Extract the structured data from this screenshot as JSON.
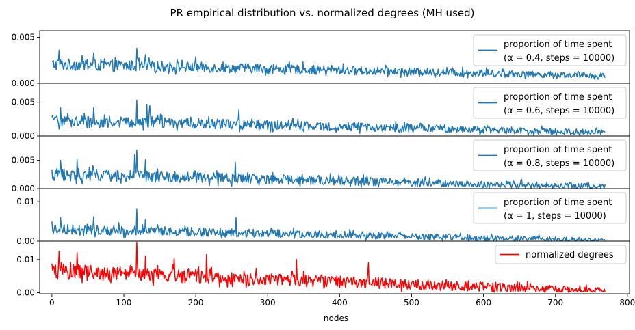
{
  "chart_data": {
    "type": "line",
    "title": "PR empirical distribution vs. normalized degrees (MH used)",
    "xlabel": "nodes",
    "xlim": [
      -17,
      803
    ],
    "x_ticks": [
      0,
      100,
      200,
      300,
      400,
      500,
      600,
      700,
      800
    ],
    "x_tick_labels": [
      "0",
      "100",
      "200",
      "300",
      "400",
      "500",
      "600",
      "700",
      "800"
    ],
    "n_nodes": 770,
    "grid": false,
    "panels": [
      {
        "series_name": "proportion of time spent",
        "legend_line2": "(α = 0.4, steps = 10000)",
        "legend_alpha": "0.4",
        "legend_steps": "10000",
        "color": "#1f77b4",
        "ylim": [
          0.0,
          0.0057
        ],
        "y_ticks": [
          0.0,
          0.005
        ],
        "y_tick_labels": [
          "0.000",
          "0.005"
        ],
        "trend_start": 0.002,
        "trend_end": 0.0008,
        "amplitude": 0.00065,
        "legend_location": "upper right",
        "peaks": [
          [
            10,
            0.0036
          ],
          [
            58,
            0.0033
          ],
          [
            118,
            0.0038
          ],
          [
            130,
            0.0031
          ],
          [
            200,
            0.0029
          ]
        ]
      },
      {
        "series_name": "proportion of time spent",
        "legend_line2": "(α = 0.6, steps = 10000)",
        "legend_alpha": "0.6",
        "legend_steps": "10000",
        "color": "#1f77b4",
        "ylim": [
          0.0,
          0.0078
        ],
        "y_ticks": [
          0.0,
          0.005
        ],
        "y_tick_labels": [
          "0.000",
          "0.005"
        ],
        "trend_start": 0.0022,
        "trend_end": 0.0005,
        "amplitude": 0.0009,
        "legend_location": "upper right",
        "peaks": [
          [
            12,
            0.0042
          ],
          [
            58,
            0.0042
          ],
          [
            118,
            0.0053
          ],
          [
            132,
            0.0047
          ],
          [
            136,
            0.0045
          ],
          [
            260,
            0.0039
          ]
        ]
      },
      {
        "series_name": "proportion of time spent",
        "legend_line2": "(α = 0.8, steps = 10000)",
        "legend_alpha": "0.8",
        "legend_steps": "10000",
        "color": "#1f77b4",
        "ylim": [
          0.0,
          0.0093
        ],
        "y_ticks": [
          0.0,
          0.005
        ],
        "y_tick_labels": [
          "0.000",
          "0.005"
        ],
        "trend_start": 0.0024,
        "trend_end": 0.0003,
        "amplitude": 0.0011,
        "legend_location": "upper right",
        "peaks": [
          [
            12,
            0.005
          ],
          [
            35,
            0.0052
          ],
          [
            115,
            0.006
          ],
          [
            118,
            0.0068
          ],
          [
            130,
            0.0051
          ],
          [
            255,
            0.0047
          ]
        ]
      },
      {
        "series_name": "proportion of time spent",
        "legend_line2": "(α = 1, steps = 10000)",
        "legend_alpha": "1",
        "legend_steps": "10000",
        "color": "#1f77b4",
        "ylim": [
          0.0,
          0.0133
        ],
        "y_ticks": [
          0.0,
          0.01
        ],
        "y_tick_labels": [
          "0.00",
          "0.01"
        ],
        "trend_start": 0.003,
        "trend_end": 0.0001,
        "amplitude": 0.0013,
        "legend_location": "upper right",
        "peaks": [
          [
            12,
            0.006
          ],
          [
            58,
            0.0062
          ],
          [
            118,
            0.0081
          ],
          [
            130,
            0.0055
          ],
          [
            256,
            0.006
          ]
        ]
      },
      {
        "series_name": "normalized degrees",
        "legend_line2": "",
        "color": "#ff0000",
        "ylim": [
          -0.0003,
          0.0155
        ],
        "y_ticks": [
          0.0,
          0.01
        ],
        "y_tick_labels": [
          "0.00",
          "0.01"
        ],
        "trend_start": 0.0062,
        "trend_end": 0.0003,
        "amplitude": 0.0024,
        "legend_location": "upper right",
        "peaks": [
          [
            10,
            0.0125
          ],
          [
            35,
            0.012
          ],
          [
            118,
            0.0152
          ],
          [
            130,
            0.011
          ],
          [
            170,
            0.0103
          ],
          [
            215,
            0.0115
          ],
          [
            340,
            0.01
          ],
          [
            440,
            0.009
          ]
        ]
      }
    ]
  }
}
